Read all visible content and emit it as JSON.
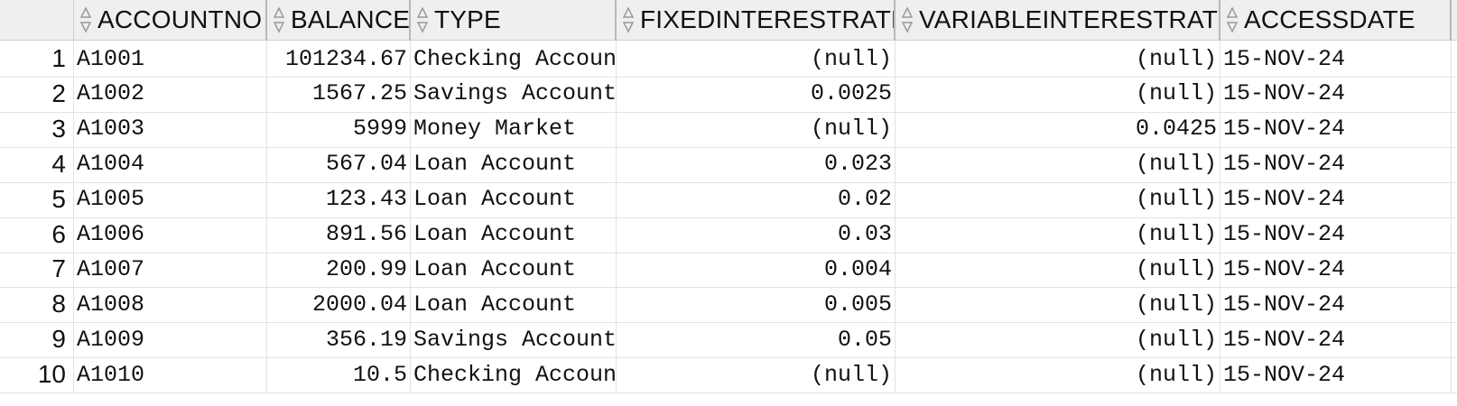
{
  "columns": [
    {
      "key": "accountno",
      "label": "ACCOUNTNO"
    },
    {
      "key": "balance",
      "label": "BALANCE"
    },
    {
      "key": "type",
      "label": "TYPE"
    },
    {
      "key": "fixedinterestrate",
      "label": "FIXEDINTERESTRATE"
    },
    {
      "key": "variableinterestrate",
      "label": "VARIABLEINTERESTRATE"
    },
    {
      "key": "accessdate",
      "label": "ACCESSDATE"
    }
  ],
  "rows": [
    {
      "num": "1",
      "accountno": "A1001",
      "balance": "101234.67",
      "type": "Checking Account",
      "fixedinterestrate": "(null)",
      "variableinterestrate": "(null)",
      "accessdate": "15-NOV-24"
    },
    {
      "num": "2",
      "accountno": "A1002",
      "balance": "1567.25",
      "type": "Savings Account",
      "fixedinterestrate": "0.0025",
      "variableinterestrate": "(null)",
      "accessdate": "15-NOV-24"
    },
    {
      "num": "3",
      "accountno": "A1003",
      "balance": "5999",
      "type": "Money Market",
      "fixedinterestrate": "(null)",
      "variableinterestrate": "0.0425",
      "accessdate": "15-NOV-24"
    },
    {
      "num": "4",
      "accountno": "A1004",
      "balance": "567.04",
      "type": "Loan Account",
      "fixedinterestrate": "0.023",
      "variableinterestrate": "(null)",
      "accessdate": "15-NOV-24"
    },
    {
      "num": "5",
      "accountno": "A1005",
      "balance": "123.43",
      "type": "Loan Account",
      "fixedinterestrate": "0.02",
      "variableinterestrate": "(null)",
      "accessdate": "15-NOV-24"
    },
    {
      "num": "6",
      "accountno": "A1006",
      "balance": "891.56",
      "type": "Loan Account",
      "fixedinterestrate": "0.03",
      "variableinterestrate": "(null)",
      "accessdate": "15-NOV-24"
    },
    {
      "num": "7",
      "accountno": "A1007",
      "balance": "200.99",
      "type": "Loan Account",
      "fixedinterestrate": "0.004",
      "variableinterestrate": "(null)",
      "accessdate": "15-NOV-24"
    },
    {
      "num": "8",
      "accountno": "A1008",
      "balance": "2000.04",
      "type": "Loan Account",
      "fixedinterestrate": "0.005",
      "variableinterestrate": "(null)",
      "accessdate": "15-NOV-24"
    },
    {
      "num": "9",
      "accountno": "A1009",
      "balance": "356.19",
      "type": "Savings Account",
      "fixedinterestrate": "0.05",
      "variableinterestrate": "(null)",
      "accessdate": "15-NOV-24"
    },
    {
      "num": "10",
      "accountno": "A1010",
      "balance": "10.5",
      "type": "Checking Account",
      "fixedinterestrate": "(null)",
      "variableinterestrate": "(null)",
      "accessdate": "15-NOV-24"
    }
  ],
  "icons": {
    "sort": "sort-icon"
  }
}
